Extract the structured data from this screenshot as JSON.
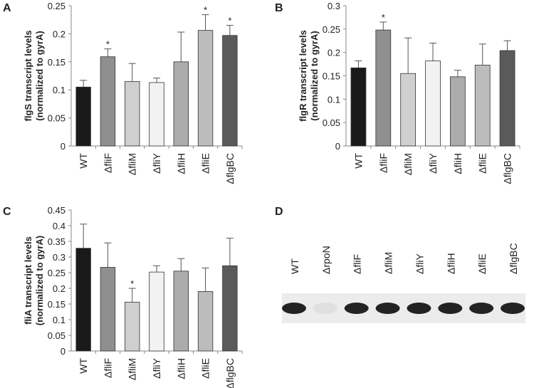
{
  "chart_data": [
    {
      "type": "bar",
      "panel": "A",
      "ylabel": [
        "flgS transcript levels",
        "(normalized to gyrA)"
      ],
      "categories": [
        "WT",
        "ΔfliF",
        "ΔfliM",
        "ΔfliY",
        "ΔfliH",
        "ΔfliE",
        "ΔflgBC"
      ],
      "values": [
        0.105,
        0.159,
        0.115,
        0.113,
        0.15,
        0.206,
        0.197
      ],
      "errors": [
        0.012,
        0.014,
        0.032,
        0.008,
        0.053,
        0.028,
        0.018
      ],
      "significance": [
        null,
        "*",
        null,
        null,
        null,
        "*",
        "*"
      ],
      "colors": [
        "#1a1a1a",
        "#8f8f8f",
        "#cfcfcf",
        "#f2f2f2",
        "#ababab",
        "#bcbcbc",
        "#5a5a5a"
      ],
      "ylim": [
        0,
        0.25
      ],
      "yticks": [
        0,
        0.05,
        0.1,
        0.15,
        0.2,
        0.25
      ]
    },
    {
      "type": "bar",
      "panel": "B",
      "ylabel": [
        "flgR transcript levels",
        "(normalized to gyrA)"
      ],
      "categories": [
        "WT",
        "ΔfliF",
        "ΔfliM",
        "ΔfliY",
        "ΔfliH",
        "ΔfliE",
        "ΔflgBC"
      ],
      "values": [
        0.167,
        0.248,
        0.155,
        0.182,
        0.148,
        0.173,
        0.204
      ],
      "errors": [
        0.015,
        0.017,
        0.076,
        0.038,
        0.014,
        0.045,
        0.021
      ],
      "significance": [
        null,
        "*",
        null,
        null,
        null,
        null,
        null
      ],
      "colors": [
        "#1a1a1a",
        "#8f8f8f",
        "#cfcfcf",
        "#f2f2f2",
        "#ababab",
        "#bcbcbc",
        "#5a5a5a"
      ],
      "ylim": [
        0,
        0.3
      ],
      "yticks": [
        0,
        0.05,
        0.1,
        0.15,
        0.2,
        0.25,
        0.3
      ]
    },
    {
      "type": "bar",
      "panel": "C",
      "ylabel": [
        "fliA transcript levels",
        "(normalized to gyrA)"
      ],
      "categories": [
        "WT",
        "ΔfliF",
        "ΔfliM",
        "ΔfliY",
        "ΔfliH",
        "ΔfliE",
        "ΔflgBC"
      ],
      "values": [
        0.328,
        0.267,
        0.156,
        0.252,
        0.255,
        0.19,
        0.272
      ],
      "errors": [
        0.077,
        0.078,
        0.044,
        0.02,
        0.04,
        0.075,
        0.088
      ],
      "significance": [
        null,
        null,
        "*",
        null,
        null,
        null,
        null
      ],
      "colors": [
        "#1a1a1a",
        "#8f8f8f",
        "#cfcfcf",
        "#f2f2f2",
        "#ababab",
        "#bcbcbc",
        "#5a5a5a"
      ],
      "ylim": [
        0,
        0.45
      ],
      "yticks": [
        0,
        0.05,
        0.1,
        0.15,
        0.2,
        0.25,
        0.3,
        0.35,
        0.4,
        0.45
      ]
    }
  ],
  "blot": {
    "panel": "D",
    "lanes": [
      "WT",
      "ΔrpoN",
      "ΔfliF",
      "ΔfliM",
      "ΔfliY",
      "ΔfliH",
      "ΔfliE",
      "ΔflgBC"
    ]
  }
}
